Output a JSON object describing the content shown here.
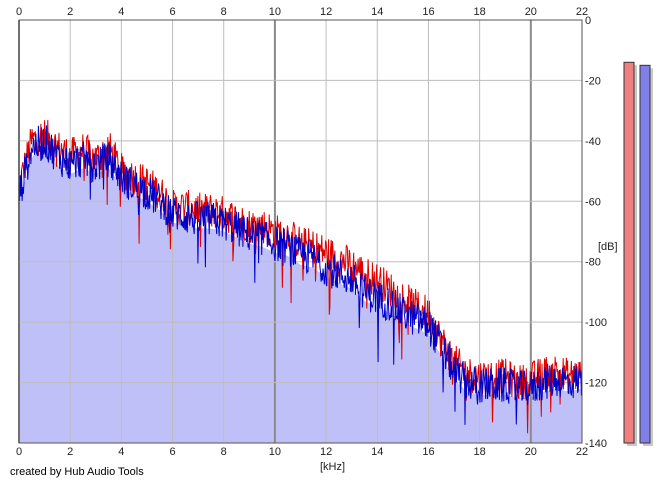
{
  "chart_data": {
    "type": "line",
    "title": "",
    "xlabel": "[kHz]",
    "ylabel": "[dB]",
    "credit": "created by Hub Audio Tools",
    "xlim": [
      0,
      22
    ],
    "ylim": [
      -140,
      0
    ],
    "x_ticks": [
      0,
      2,
      4,
      6,
      8,
      10,
      12,
      14,
      16,
      18,
      20,
      22
    ],
    "y_ticks": [
      0,
      -20,
      -40,
      -60,
      -80,
      -100,
      -120,
      -140
    ],
    "grid": true,
    "colors": {
      "left": "#e00000",
      "right": "#0000c8",
      "fill": "#c0c0f8",
      "grid": "#bdbdbd",
      "grid_major": "#8a8a8a",
      "meter_left": "#f08080",
      "meter_right": "#8080e8"
    },
    "x": [
      0,
      0.5,
      1,
      1.5,
      2,
      2.5,
      3,
      3.5,
      4,
      4.5,
      5,
      5.5,
      6,
      6.5,
      7,
      7.5,
      8,
      8.5,
      9,
      9.5,
      10,
      10.5,
      11,
      11.5,
      12,
      12.5,
      13,
      13.5,
      14,
      14.5,
      15,
      15.5,
      16,
      16.5,
      17,
      17.5,
      18,
      18.5,
      19,
      19.5,
      20,
      20.5,
      21,
      21.5,
      22
    ],
    "series": [
      {
        "values": [
          -55,
          -40,
          -38,
          -42,
          -45,
          -43,
          -46,
          -42,
          -50,
          -52,
          -54,
          -57,
          -62,
          -62,
          -63,
          -63,
          -64,
          -66,
          -68,
          -68,
          -70,
          -71,
          -74,
          -75,
          -77,
          -79,
          -81,
          -84,
          -86,
          -89,
          -92,
          -95,
          -97,
          -106,
          -113,
          -117,
          -118,
          -118,
          -118,
          -120,
          -119,
          -117,
          -116,
          -118,
          -117
        ]
      },
      {
        "values": [
          -58,
          -42,
          -40,
          -45,
          -48,
          -46,
          -48,
          -46,
          -52,
          -55,
          -57,
          -60,
          -64,
          -65,
          -66,
          -66,
          -67,
          -69,
          -71,
          -72,
          -74,
          -75,
          -78,
          -79,
          -82,
          -84,
          -86,
          -90,
          -92,
          -94,
          -97,
          -99,
          -101,
          -108,
          -116,
          -120,
          -121,
          -121,
          -121,
          -122,
          -122,
          -120,
          -119,
          -120,
          -119
        ]
      }
    ],
    "level_meters": [
      {
        "level_db": -14
      },
      {
        "level_db": -15
      }
    ]
  }
}
